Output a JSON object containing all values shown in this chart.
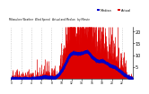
{
  "n_points": 1440,
  "seed": 7,
  "background_color": "#ffffff",
  "bar_color": "#dd0000",
  "median_color": "#0000cc",
  "ylim": [
    0,
    22
  ],
  "ytick_values": [
    5,
    10,
    15,
    20
  ],
  "ylabel_fontsize": 3.5,
  "grid_color": "#999999",
  "legend_labels": [
    "Median",
    "Actual"
  ],
  "legend_colors": [
    "#0000cc",
    "#dd0000"
  ]
}
